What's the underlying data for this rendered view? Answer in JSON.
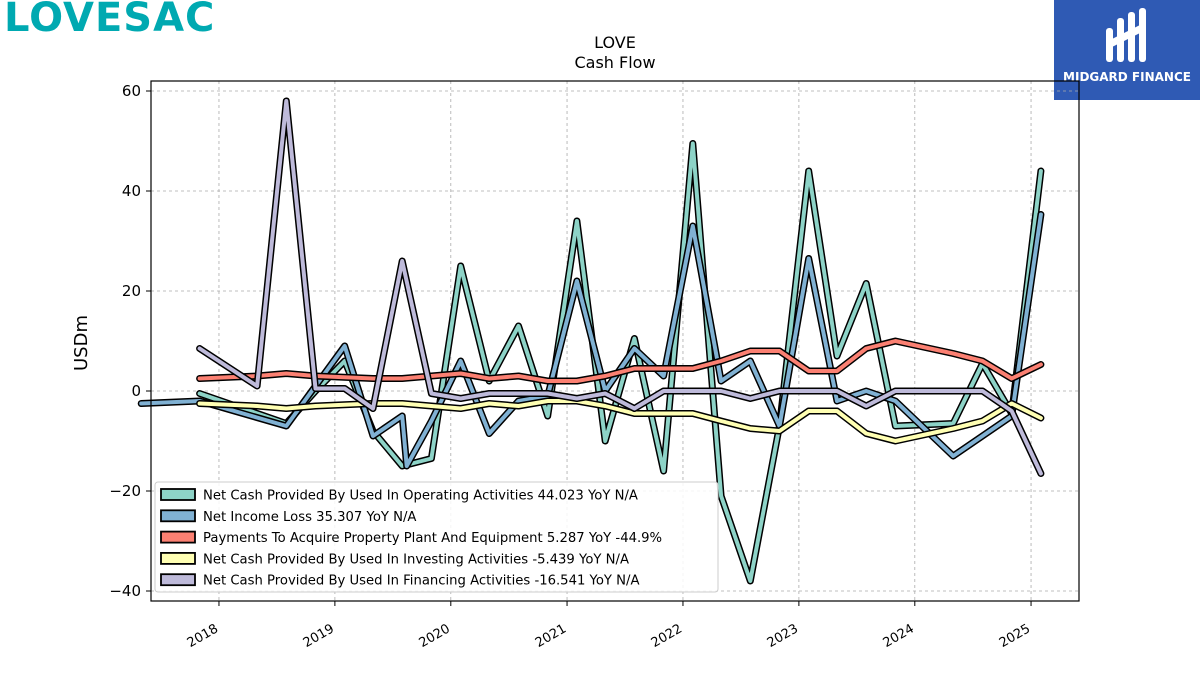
{
  "brand": {
    "left_logo": "LOVESAC",
    "right_logo": "MIDGARD FINANCE",
    "right_logo_bg": "#2f5ab4",
    "left_logo_color": "#00a9b1"
  },
  "chart_data": {
    "type": "line",
    "title": "LOVE",
    "subtitle": "Cash Flow",
    "xlabel": "",
    "ylabel": "USDm",
    "ylim": [
      -42,
      62
    ],
    "xlim": [
      "2017-06-01",
      "2025-06-01"
    ],
    "yticks": [
      60,
      40,
      20,
      0,
      -20,
      -40
    ],
    "ytick_labels": [
      "60",
      "40",
      "20",
      "0",
      "−20",
      "−40"
    ],
    "xticks": [
      "2018-01-01",
      "2019-01-01",
      "2020-01-01",
      "2021-01-01",
      "2022-01-01",
      "2023-01-01",
      "2024-01-01",
      "2025-01-01"
    ],
    "xtick_labels": [
      "2018",
      "2019",
      "2020",
      "2021",
      "2022",
      "2023",
      "2024",
      "2025"
    ],
    "grid": true,
    "legend_position": "lower-left",
    "series": [
      {
        "name": "Net Cash Provided By Used In Operating Activities",
        "legend_label": "Net Cash Provided By Used In Operating Activities  44.023 YoY N/A",
        "color": "#8dd3c7",
        "points": [
          [
            "2017-11-01",
            -0.5
          ],
          [
            "2018-08-01",
            -6.5
          ],
          [
            "2018-11-01",
            0.0
          ],
          [
            "2019-02-01",
            6.0
          ],
          [
            "2019-05-01",
            -8.0
          ],
          [
            "2019-08-01",
            -15.0
          ],
          [
            "2019-11-01",
            -13.5
          ],
          [
            "2020-02-01",
            25.0
          ],
          [
            "2020-05-01",
            2.0
          ],
          [
            "2020-08-01",
            13.0
          ],
          [
            "2020-11-01",
            -5.0
          ],
          [
            "2021-02-01",
            34.0
          ],
          [
            "2021-05-01",
            -10.0
          ],
          [
            "2021-08-01",
            10.5
          ],
          [
            "2021-11-01",
            -16.0
          ],
          [
            "2022-02-01",
            49.5
          ],
          [
            "2022-05-01",
            -21.0
          ],
          [
            "2022-08-01",
            -38.0
          ],
          [
            "2022-11-01",
            -7.0
          ],
          [
            "2023-02-01",
            44.0
          ],
          [
            "2023-05-01",
            7.0
          ],
          [
            "2023-08-01",
            21.5
          ],
          [
            "2023-11-01",
            -7.0
          ],
          [
            "2024-05-01",
            -6.5
          ],
          [
            "2024-08-01",
            5.5
          ],
          [
            "2024-11-01",
            -4.5
          ],
          [
            "2025-02-01",
            44.0
          ]
        ]
      },
      {
        "name": "Net Income Loss",
        "legend_label": "Net Income Loss  35.307 YoY N/A",
        "color": "#80b1d3",
        "points": [
          [
            "2017-05-01",
            -2.5
          ],
          [
            "2017-11-01",
            -2.0
          ],
          [
            "2018-08-01",
            -7.0
          ],
          [
            "2018-11-01",
            1.0
          ],
          [
            "2019-02-01",
            9.0
          ],
          [
            "2019-05-01",
            -9.0
          ],
          [
            "2019-08-01",
            -5.0
          ],
          [
            "2019-08-15",
            -15.0
          ],
          [
            "2019-11-01",
            -6.0
          ],
          [
            "2020-02-01",
            6.0
          ],
          [
            "2020-05-01",
            -8.5
          ],
          [
            "2020-08-01",
            -2.0
          ],
          [
            "2020-11-01",
            -1.0
          ],
          [
            "2021-02-01",
            22.0
          ],
          [
            "2021-05-01",
            0.0
          ],
          [
            "2021-08-01",
            8.5
          ],
          [
            "2021-11-01",
            3.0
          ],
          [
            "2022-02-01",
            33.0
          ],
          [
            "2022-05-01",
            2.0
          ],
          [
            "2022-08-01",
            6.0
          ],
          [
            "2022-11-01",
            -7.0
          ],
          [
            "2023-02-01",
            26.5
          ],
          [
            "2023-05-01",
            -2.0
          ],
          [
            "2023-08-01",
            0.0
          ],
          [
            "2023-11-01",
            -2.0
          ],
          [
            "2024-05-01",
            -13.0
          ],
          [
            "2024-11-01",
            -5.0
          ],
          [
            "2025-02-01",
            35.3
          ]
        ]
      },
      {
        "name": "Payments To Acquire Property Plant And Equipment",
        "legend_label": "Payments To Acquire Property Plant And Equipment  5.287 YoY -44.9%",
        "color": "#fb8072",
        "points": [
          [
            "2017-11-01",
            2.5
          ],
          [
            "2018-05-01",
            3.0
          ],
          [
            "2018-08-01",
            3.5
          ],
          [
            "2018-11-01",
            3.0
          ],
          [
            "2019-05-01",
            2.5
          ],
          [
            "2019-08-01",
            2.5
          ],
          [
            "2019-11-01",
            3.0
          ],
          [
            "2020-02-01",
            3.5
          ],
          [
            "2020-05-01",
            2.5
          ],
          [
            "2020-08-01",
            3.0
          ],
          [
            "2020-11-01",
            2.0
          ],
          [
            "2021-02-01",
            2.0
          ],
          [
            "2021-05-01",
            3.0
          ],
          [
            "2021-08-01",
            4.5
          ],
          [
            "2021-11-01",
            4.5
          ],
          [
            "2022-02-01",
            4.5
          ],
          [
            "2022-05-01",
            6.0
          ],
          [
            "2022-08-01",
            8.0
          ],
          [
            "2022-11-01",
            8.0
          ],
          [
            "2023-02-01",
            4.0
          ],
          [
            "2023-05-01",
            4.0
          ],
          [
            "2023-08-01",
            8.5
          ],
          [
            "2023-11-01",
            10.0
          ],
          [
            "2024-05-01",
            7.5
          ],
          [
            "2024-08-01",
            6.0
          ],
          [
            "2024-11-01",
            2.5
          ],
          [
            "2025-02-01",
            5.3
          ]
        ]
      },
      {
        "name": "Net Cash Provided By Used In Investing Activities",
        "legend_label": "Net Cash Provided By Used In Investing Activities  -5.439 YoY N/A",
        "color": "#ffffb3",
        "points": [
          [
            "2017-11-01",
            -2.5
          ],
          [
            "2018-05-01",
            -3.0
          ],
          [
            "2018-08-01",
            -3.5
          ],
          [
            "2018-11-01",
            -3.0
          ],
          [
            "2019-05-01",
            -2.5
          ],
          [
            "2019-08-01",
            -2.5
          ],
          [
            "2019-11-01",
            -3.0
          ],
          [
            "2020-02-01",
            -3.5
          ],
          [
            "2020-05-01",
            -2.5
          ],
          [
            "2020-08-01",
            -3.0
          ],
          [
            "2020-11-01",
            -2.0
          ],
          [
            "2021-02-01",
            -2.0
          ],
          [
            "2021-05-01",
            -3.0
          ],
          [
            "2021-08-01",
            -4.5
          ],
          [
            "2021-11-01",
            -4.5
          ],
          [
            "2022-02-01",
            -4.5
          ],
          [
            "2022-05-01",
            -6.0
          ],
          [
            "2022-08-01",
            -7.5
          ],
          [
            "2022-11-01",
            -8.0
          ],
          [
            "2023-02-01",
            -4.0
          ],
          [
            "2023-05-01",
            -4.0
          ],
          [
            "2023-08-01",
            -8.5
          ],
          [
            "2023-11-01",
            -10.0
          ],
          [
            "2024-05-01",
            -7.5
          ],
          [
            "2024-08-01",
            -6.0
          ],
          [
            "2024-11-01",
            -2.5
          ],
          [
            "2025-02-01",
            -5.4
          ]
        ]
      },
      {
        "name": "Net Cash Provided By Used In Financing Activities",
        "legend_label": "Net Cash Provided By Used In Financing Activities  -16.541 YoY N/A",
        "color": "#bebada",
        "points": [
          [
            "2017-11-01",
            8.5
          ],
          [
            "2018-05-01",
            1.0
          ],
          [
            "2018-08-01",
            58.0
          ],
          [
            "2018-11-01",
            0.5
          ],
          [
            "2019-02-01",
            0.5
          ],
          [
            "2019-05-01",
            -3.5
          ],
          [
            "2019-08-01",
            26.0
          ],
          [
            "2019-11-01",
            -0.5
          ],
          [
            "2020-02-01",
            -1.5
          ],
          [
            "2020-05-01",
            -0.5
          ],
          [
            "2020-08-01",
            -0.5
          ],
          [
            "2020-11-01",
            -0.5
          ],
          [
            "2021-02-01",
            -1.5
          ],
          [
            "2021-05-01",
            -0.5
          ],
          [
            "2021-08-01",
            -3.5
          ],
          [
            "2021-11-01",
            0.0
          ],
          [
            "2022-02-01",
            0.0
          ],
          [
            "2022-05-01",
            0.0
          ],
          [
            "2022-08-01",
            -1.5
          ],
          [
            "2022-11-01",
            0.0
          ],
          [
            "2023-02-01",
            0.0
          ],
          [
            "2023-05-01",
            0.0
          ],
          [
            "2023-08-01",
            -3.0
          ],
          [
            "2023-11-01",
            0.0
          ],
          [
            "2024-05-01",
            0.0
          ],
          [
            "2024-08-01",
            0.0
          ],
          [
            "2024-11-01",
            -4.0
          ],
          [
            "2025-02-01",
            -16.5
          ]
        ]
      }
    ]
  }
}
